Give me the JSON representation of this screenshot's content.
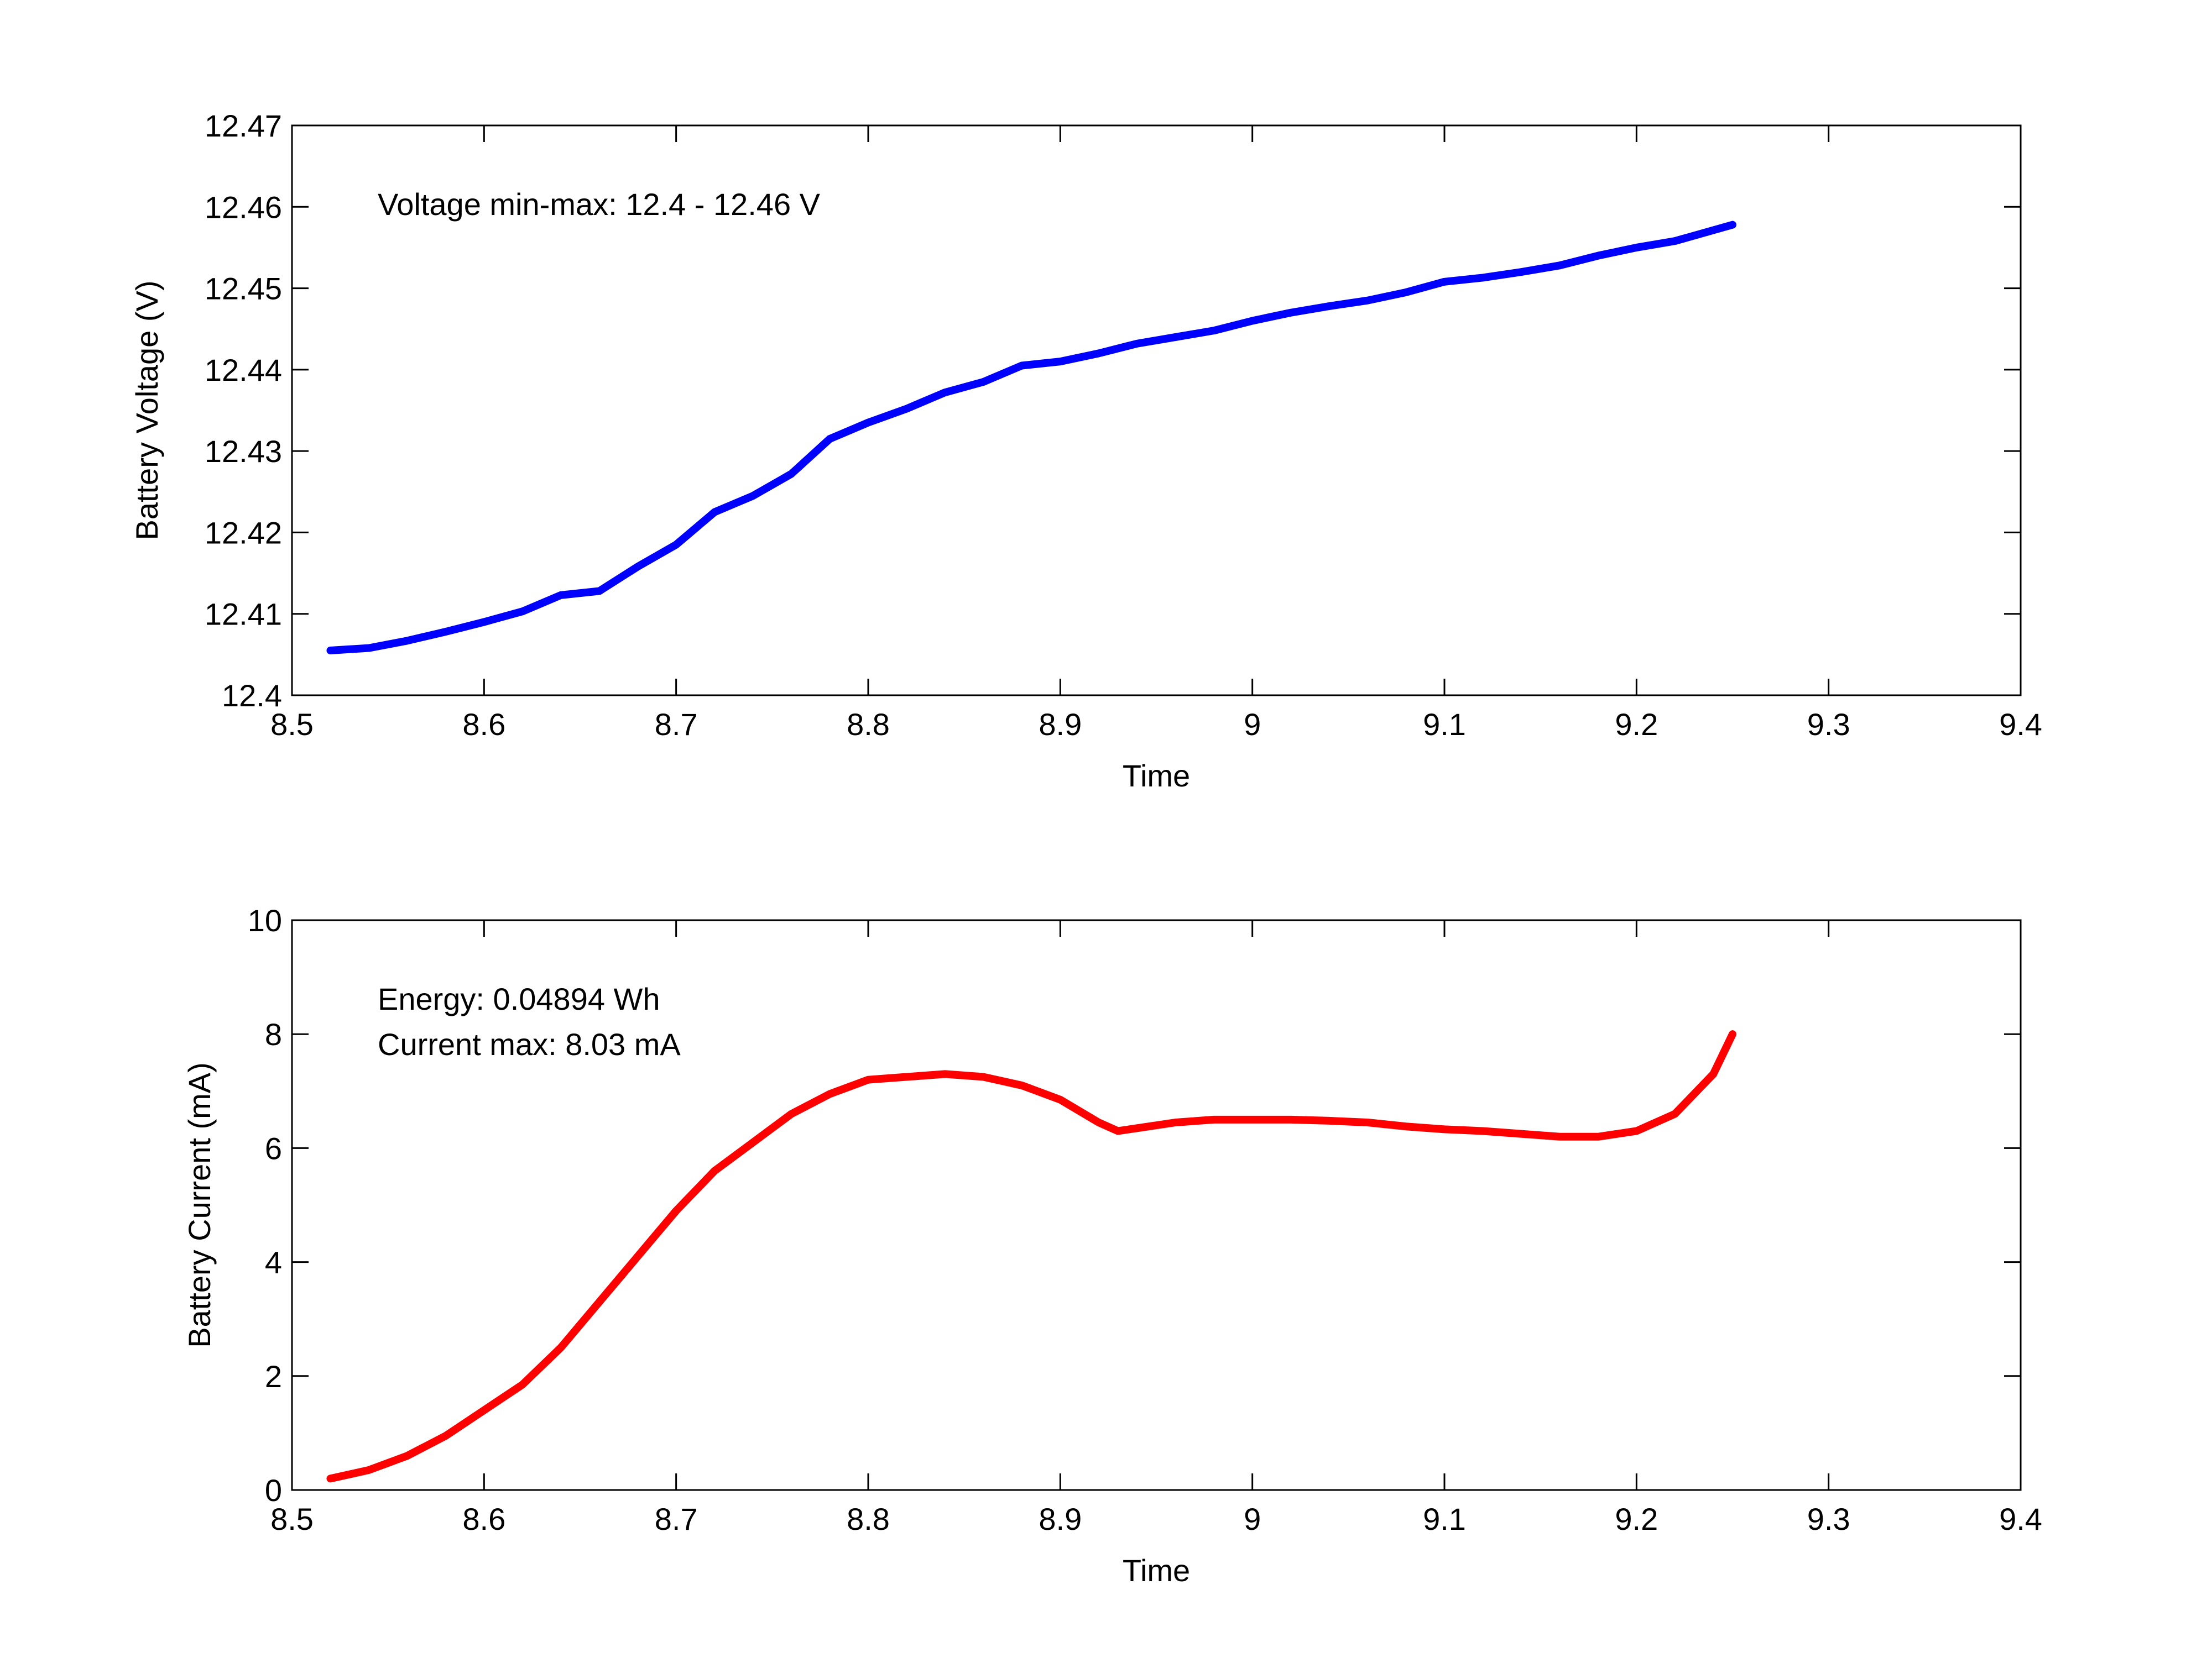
{
  "chart_data": [
    {
      "type": "line",
      "xlabel": "Time",
      "ylabel": "Battery Voltage (V)",
      "annotations": [
        "Voltage min-max: 12.4 - 12.46 V"
      ],
      "xlim": [
        8.5,
        9.4
      ],
      "xticks": [
        8.5,
        8.6,
        8.7,
        8.8,
        8.9,
        9,
        9.1,
        9.2,
        9.3,
        9.4
      ],
      "ylim": [
        12.4,
        12.47
      ],
      "yticks": [
        12.4,
        12.41,
        12.42,
        12.43,
        12.44,
        12.45,
        12.46,
        12.47
      ],
      "x": [
        8.52,
        8.54,
        8.56,
        8.58,
        8.6,
        8.62,
        8.64,
        8.66,
        8.68,
        8.7,
        8.72,
        8.74,
        8.76,
        8.78,
        8.8,
        8.82,
        8.84,
        8.86,
        8.88,
        8.9,
        8.92,
        8.94,
        8.96,
        8.98,
        9,
        9.02,
        9.04,
        9.06,
        9.08,
        9.1,
        9.12,
        9.14,
        9.16,
        9.18,
        9.2,
        9.22,
        9.25
      ],
      "series": [
        {
          "color": "#0000ff",
          "values": [
            12.4055,
            12.4058,
            12.4067,
            12.4078,
            12.409,
            12.4103,
            12.4123,
            12.4128,
            12.4158,
            12.4185,
            12.4225,
            12.4245,
            12.4272,
            12.4315,
            12.4335,
            12.4352,
            12.4372,
            12.4385,
            12.4405,
            12.441,
            12.442,
            12.4432,
            12.444,
            12.4448,
            12.446,
            12.447,
            12.4478,
            12.4485,
            12.4495,
            12.4508,
            12.4513,
            12.452,
            12.4528,
            12.454,
            12.455,
            12.4558,
            12.4578
          ]
        }
      ]
    },
    {
      "type": "line",
      "xlabel": "Time",
      "ylabel": "Battery Current (mA)",
      "annotations": [
        "Energy: 0.04894 Wh",
        "Current max: 8.03 mA"
      ],
      "xlim": [
        8.5,
        9.4
      ],
      "xticks": [
        8.5,
        8.6,
        8.7,
        8.8,
        8.9,
        9,
        9.1,
        9.2,
        9.3,
        9.4
      ],
      "ylim": [
        0,
        10
      ],
      "yticks": [
        0,
        2,
        4,
        6,
        8,
        10
      ],
      "x": [
        8.52,
        8.54,
        8.56,
        8.58,
        8.6,
        8.62,
        8.64,
        8.66,
        8.68,
        8.7,
        8.72,
        8.74,
        8.76,
        8.78,
        8.8,
        8.82,
        8.84,
        8.86,
        8.88,
        8.9,
        8.92,
        8.93,
        8.94,
        8.96,
        8.98,
        9,
        9.02,
        9.04,
        9.06,
        9.08,
        9.1,
        9.12,
        9.14,
        9.16,
        9.18,
        9.2,
        9.22,
        9.24,
        9.25
      ],
      "series": [
        {
          "color": "#ff0000",
          "values": [
            0.2,
            0.35,
            0.6,
            0.95,
            1.4,
            1.85,
            2.5,
            3.3,
            4.1,
            4.9,
            5.6,
            6.1,
            6.6,
            6.95,
            7.2,
            7.25,
            7.3,
            7.25,
            7.1,
            6.85,
            6.45,
            6.3,
            6.35,
            6.45,
            6.5,
            6.5,
            6.5,
            6.48,
            6.45,
            6.38,
            6.33,
            6.3,
            6.25,
            6.2,
            6.2,
            6.3,
            6.6,
            7.3,
            8.0
          ]
        }
      ]
    }
  ]
}
